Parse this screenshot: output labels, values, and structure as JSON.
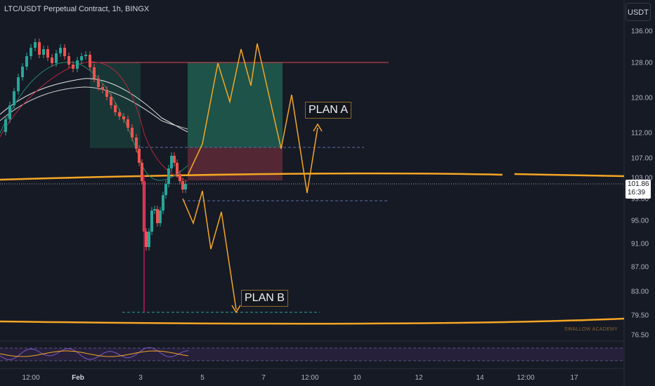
{
  "header": {
    "title": "LTC/USDT Perpetual Contract, 1h, BINGX",
    "currency_button": "USDT"
  },
  "price_axis": {
    "labels": [
      "136.00",
      "128.00",
      "120.00",
      "112.00",
      "107.00",
      "103.00",
      "99.00",
      "95.00",
      "91.00",
      "87.00",
      "83.00",
      "79.50",
      "76.50"
    ]
  },
  "current_price": {
    "price": "101.86",
    "countdown": "16:39"
  },
  "time_axis": {
    "labels": [
      "12:00",
      "Feb",
      "3",
      "5",
      "7",
      "12:00",
      "10",
      "12",
      "14",
      "12:00",
      "17"
    ]
  },
  "annotations": {
    "plan_a": "PLAN A",
    "plan_b": "PLAN B",
    "watermark": "SWALLOW ACADEMY"
  },
  "colors": {
    "background": "#161a25",
    "up": "#26a69a",
    "down": "#ef5350",
    "projection": "#f5a623",
    "target_zone": "#1e5a4c",
    "stop_zone": "#5a2a36",
    "resistance_line": "#e0454e",
    "ma_white": "#e6e6e6",
    "oscillator": "#7e57c2"
  }
}
